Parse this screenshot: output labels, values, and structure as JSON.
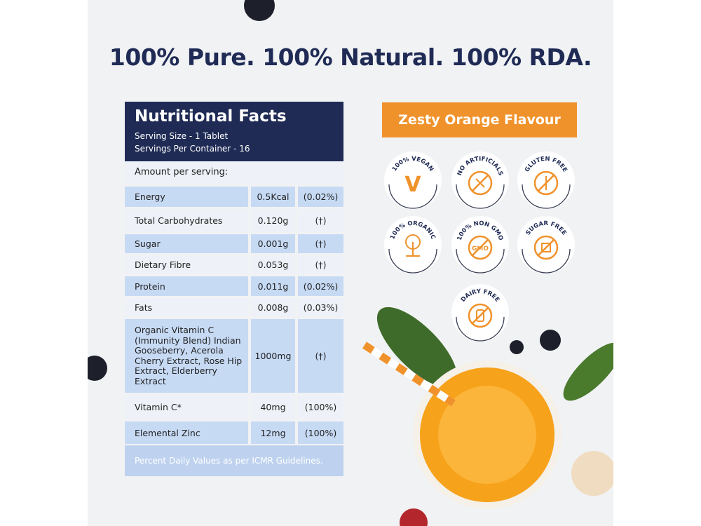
{
  "headline": "100% Pure. 100% Natural. 100% RDA.",
  "nutrition": {
    "title": "Nutritional Facts",
    "serving_size": "Serving Size - 1 Tablet",
    "servings_per_container": "Servings Per Container - 16",
    "amount_label": "Amount per serving:",
    "rows": [
      {
        "name": "Energy",
        "amount": "0.5Kcal",
        "percent": "(0.02%)"
      },
      {
        "name": "Total Carbohydrates",
        "amount": "0.120g",
        "percent": "(†)"
      },
      {
        "name": "Sugar",
        "amount": "0.001g",
        "percent": "(†)"
      },
      {
        "name": "Dietary Fibre",
        "amount": "0.053g",
        "percent": "(†)"
      },
      {
        "name": "Protein",
        "amount": "0.011g",
        "percent": "(0.02%)"
      },
      {
        "name": "Fats",
        "amount": "0.008g",
        "percent": "(0.03%)"
      },
      {
        "name": "Organic Vitamin C (Immunity Blend) Indian Gooseberry, Acerola Cherry Extract, Rose Hip Extract, Elderberry Extract",
        "amount": "1000mg",
        "percent": "(†)"
      },
      {
        "name": "Vitamin C*",
        "amount": "40mg",
        "percent": "(100%)"
      },
      {
        "name": "Elemental Zinc",
        "amount": "12mg",
        "percent": "(100%)"
      }
    ],
    "footer": "Percent Daily Values as per ICMR Guidelines."
  },
  "flavour": "Zesty Orange Flavour",
  "badges": [
    {
      "label": "100% VEGAN",
      "icon": "v-letter-icon"
    },
    {
      "label": "NO ARTIFICIALS",
      "icon": "no-dropper-icon"
    },
    {
      "label": "GLUTEN FREE",
      "icon": "no-wheat-icon"
    },
    {
      "label": "100% ORGANIC",
      "icon": "tree-icon"
    },
    {
      "label": "100% NON GMO",
      "icon": "no-gmo-icon"
    },
    {
      "label": "SUGAR FREE",
      "icon": "no-sugar-cube-icon"
    },
    {
      "label": "DAIRY FREE",
      "icon": "no-milk-bottle-icon"
    }
  ],
  "colors": {
    "navy": "#1f2b55",
    "orange": "#f0922b",
    "row_blue": "#c7daf4"
  }
}
